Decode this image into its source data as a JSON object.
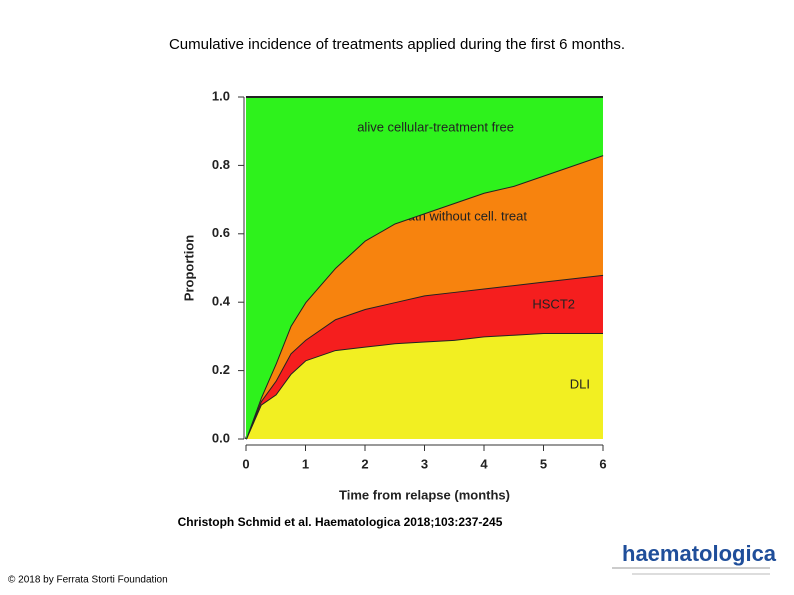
{
  "slide": {
    "title": "Cumulative incidence of treatments applied during the first 6 months.",
    "citation": "Christoph Schmid et al. Haematologica 2018;103:237-245",
    "copyright": "© 2018 by Ferrata Storti Foundation",
    "logo": "haematologica"
  },
  "chart_data": {
    "type": "stacked-area",
    "xlabel": "Time from relapse (months)",
    "ylabel": "Proportion",
    "x": [
      0,
      0.25,
      0.5,
      0.75,
      1,
      1.5,
      2,
      2.5,
      3,
      3.5,
      4,
      4.5,
      5,
      5.5,
      6
    ],
    "series": [
      {
        "name": "DLI",
        "color": "#f2ef22",
        "values": [
          0,
          0.1,
          0.13,
          0.19,
          0.23,
          0.26,
          0.27,
          0.28,
          0.285,
          0.29,
          0.3,
          0.305,
          0.31,
          0.31,
          0.31
        ]
      },
      {
        "name": "HSCT2",
        "color": "#f51e1e",
        "values": [
          0,
          0.01,
          0.04,
          0.06,
          0.06,
          0.09,
          0.11,
          0.12,
          0.135,
          0.14,
          0.14,
          0.145,
          0.15,
          0.16,
          0.17
        ]
      },
      {
        "name": "death without cell. treat",
        "color": "#f7830e",
        "values": [
          0,
          0.01,
          0.05,
          0.08,
          0.11,
          0.15,
          0.2,
          0.23,
          0.24,
          0.26,
          0.28,
          0.29,
          0.31,
          0.33,
          0.35
        ]
      },
      {
        "name": "alive cellular-treatment free",
        "color": "#2ef21c",
        "values": [
          1,
          0.88,
          0.78,
          0.67,
          0.6,
          0.5,
          0.42,
          0.37,
          0.34,
          0.31,
          0.28,
          0.26,
          0.23,
          0.2,
          0.17
        ]
      }
    ],
    "xlim": [
      0,
      6
    ],
    "ylim": [
      0,
      1
    ],
    "xticks": [
      0,
      1,
      2,
      3,
      4,
      5,
      6
    ],
    "yticks": [
      {
        "value": 0,
        "label": "0.0"
      },
      0.2,
      0.4,
      0.6,
      0.8,
      {
        "value": 1,
        "label": "1.0"
      }
    ]
  }
}
